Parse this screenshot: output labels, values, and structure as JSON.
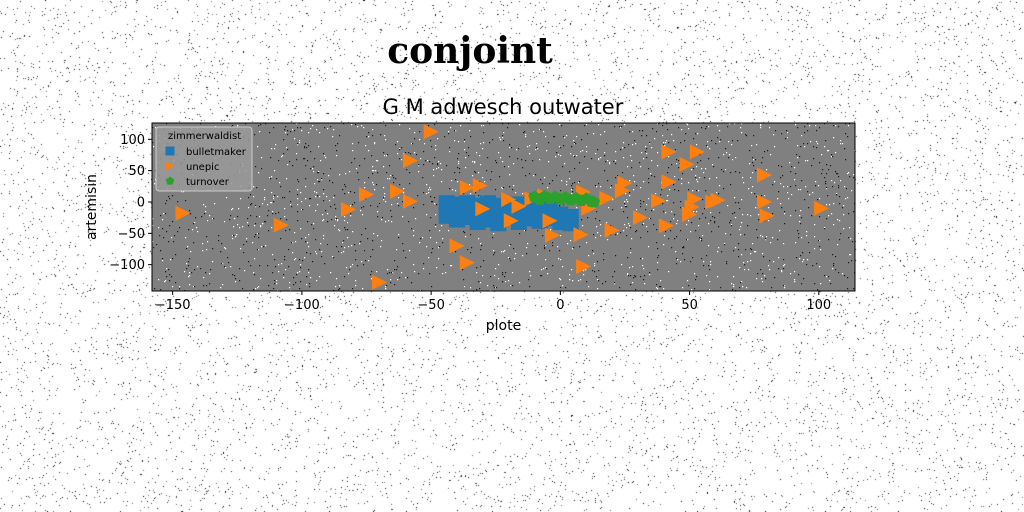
{
  "figure": {
    "suptitle": "conjoint"
  },
  "chart_data": {
    "type": "scatter",
    "title": "G M adwesch outwater",
    "xlabel": "plote",
    "ylabel": "artemisin",
    "xlim": [
      -158,
      114
    ],
    "ylim": [
      -142,
      126
    ],
    "xticks": [
      -150,
      -100,
      -50,
      0,
      50,
      100
    ],
    "yticks": [
      100,
      50,
      0,
      -50,
      -100
    ],
    "xtick_labels": [
      "−150",
      "−100",
      "−50",
      "0",
      "50",
      "100"
    ],
    "ytick_labels": [
      "100",
      "50",
      "0",
      "−50",
      "−100"
    ],
    "grid": false,
    "legend": {
      "title": "zimmerwaldist",
      "placement": "top-left",
      "entries": [
        "bulletmaker",
        "unepic",
        "turnover"
      ]
    },
    "colors": {
      "plot_background": "#808080",
      "bulletmaker": "#1f77b4",
      "unepic": "#ff7f0e",
      "turnover": "#2ca02c"
    },
    "series": [
      {
        "name": "bulletmaker",
        "marker": "square",
        "points": [
          [
            -44,
            -2
          ],
          [
            -44,
            -12
          ],
          [
            -44,
            -22
          ],
          [
            -40,
            -4
          ],
          [
            -40,
            -14
          ],
          [
            -40,
            -28
          ],
          [
            -36,
            -2
          ],
          [
            -36,
            -12
          ],
          [
            -36,
            -24
          ],
          [
            -32,
            -6
          ],
          [
            -32,
            -18
          ],
          [
            -32,
            -32
          ],
          [
            -28,
            -2
          ],
          [
            -28,
            -14
          ],
          [
            -28,
            -28
          ],
          [
            -24,
            -6
          ],
          [
            -24,
            -20
          ],
          [
            -24,
            -34
          ],
          [
            -20,
            -10
          ],
          [
            -20,
            -24
          ],
          [
            -16,
            -4
          ],
          [
            -16,
            -18
          ],
          [
            -16,
            -32
          ],
          [
            -12,
            -10
          ],
          [
            -12,
            -26
          ],
          [
            -8,
            -16
          ],
          [
            -8,
            -30
          ],
          [
            -4,
            -12
          ],
          [
            -4,
            -26
          ],
          [
            0,
            -20
          ],
          [
            0,
            -32
          ],
          [
            4,
            -24
          ],
          [
            4,
            -34
          ],
          [
            -42,
            -6
          ],
          [
            -30,
            -24
          ]
        ]
      },
      {
        "name": "unepic",
        "marker": "triangle-right",
        "points": [
          [
            -146,
            -18
          ],
          [
            -108,
            -37
          ],
          [
            -82,
            -12
          ],
          [
            -75,
            12
          ],
          [
            -63,
            17
          ],
          [
            -58,
            1
          ],
          [
            -58,
            66
          ],
          [
            -50,
            112
          ],
          [
            -70,
            -128
          ],
          [
            -40,
            -70
          ],
          [
            -36,
            -97
          ],
          [
            -36,
            23
          ],
          [
            -31,
            26
          ],
          [
            -30,
            -11
          ],
          [
            -20,
            4
          ],
          [
            -19,
            -30
          ],
          [
            -16,
            -7
          ],
          [
            -11,
            5
          ],
          [
            -6,
            10
          ],
          [
            -4,
            -30
          ],
          [
            -3,
            -53
          ],
          [
            8,
            -52
          ],
          [
            9,
            -103
          ],
          [
            9,
            16
          ],
          [
            11,
            -10
          ],
          [
            18,
            6
          ],
          [
            20,
            -45
          ],
          [
            24,
            18
          ],
          [
            25,
            30
          ],
          [
            31,
            -25
          ],
          [
            38,
            2
          ],
          [
            41,
            -38
          ],
          [
            42,
            32
          ],
          [
            42,
            80
          ],
          [
            49,
            60
          ],
          [
            50,
            -20
          ],
          [
            51,
            -8
          ],
          [
            52,
            5
          ],
          [
            53,
            80
          ],
          [
            59,
            0
          ],
          [
            61,
            3
          ],
          [
            79,
            43
          ],
          [
            79,
            0
          ],
          [
            80,
            -22
          ],
          [
            101,
            -10
          ]
        ]
      },
      {
        "name": "turnover",
        "marker": "pentagon",
        "points": [
          [
            -10,
            8
          ],
          [
            -8,
            4
          ],
          [
            -6,
            9
          ],
          [
            -4,
            5
          ],
          [
            -2,
            8
          ],
          [
            0,
            4
          ],
          [
            2,
            7
          ],
          [
            4,
            3
          ],
          [
            6,
            6
          ],
          [
            8,
            2
          ],
          [
            10,
            5
          ],
          [
            12,
            1
          ],
          [
            13,
            0
          ]
        ]
      }
    ]
  }
}
